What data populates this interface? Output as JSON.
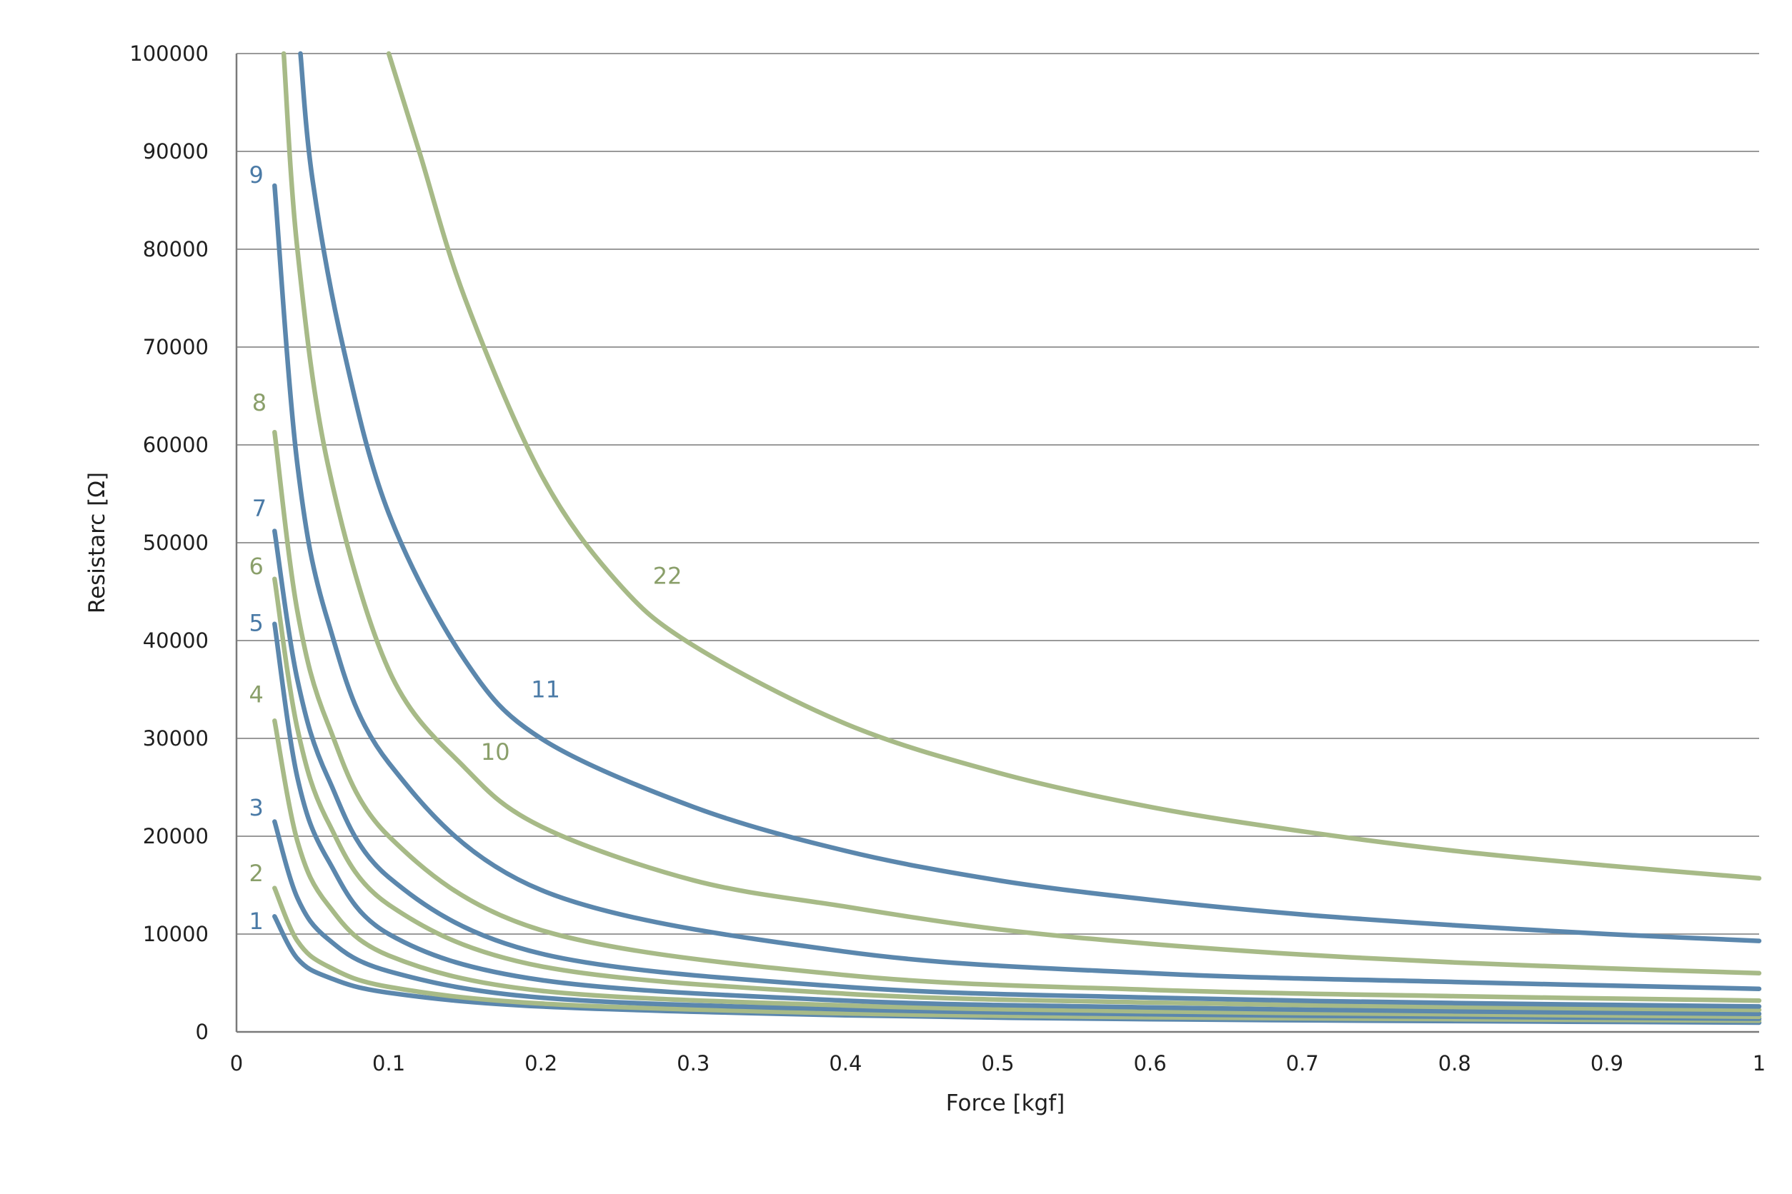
{
  "chart_data": {
    "type": "line",
    "title": "",
    "xlabel": "Force [kgf]",
    "ylabel": "Resistarc [Ω]",
    "xlim": [
      0,
      1
    ],
    "ylim": [
      0,
      100000
    ],
    "x_ticks": [
      "0",
      "0.1",
      "0.2",
      "0.3",
      "0.4",
      "0.5",
      "0.6",
      "0.7",
      "0.8",
      "0.9",
      "1"
    ],
    "y_ticks": [
      "0",
      "10000",
      "20000",
      "30000",
      "40000",
      "50000",
      "60000",
      "70000",
      "80000",
      "90000",
      "100000"
    ],
    "grid": "horizontal",
    "legend": "none",
    "colors": {
      "blue": "#5b87ad",
      "green": "#a7ba87",
      "label_blue": "#4a7aa6",
      "label_green": "#8a9f6a"
    },
    "series": [
      {
        "label": "1",
        "color": "blue",
        "points": [
          [
            0.025,
            11800
          ],
          [
            0.04,
            7500
          ],
          [
            0.06,
            5600
          ],
          [
            0.1,
            4000
          ],
          [
            0.2,
            2600
          ],
          [
            0.4,
            1700
          ],
          [
            0.6,
            1300
          ],
          [
            0.8,
            1100
          ],
          [
            1.0,
            950
          ]
        ]
      },
      {
        "label": "2",
        "color": "green",
        "points": [
          [
            0.025,
            14700
          ],
          [
            0.04,
            9300
          ],
          [
            0.06,
            6700
          ],
          [
            0.1,
            4600
          ],
          [
            0.2,
            2900
          ],
          [
            0.4,
            1900
          ],
          [
            0.6,
            1500
          ],
          [
            0.8,
            1300
          ],
          [
            1.0,
            1150
          ]
        ]
      },
      {
        "label": "3",
        "color": "blue",
        "points": [
          [
            0.025,
            21500
          ],
          [
            0.04,
            13700
          ],
          [
            0.06,
            9500
          ],
          [
            0.1,
            6200
          ],
          [
            0.2,
            3500
          ],
          [
            0.4,
            2300
          ],
          [
            0.6,
            1800
          ],
          [
            0.8,
            1550
          ],
          [
            1.0,
            1350
          ]
        ]
      },
      {
        "label": "4",
        "color": "green",
        "points": [
          [
            0.025,
            31800
          ],
          [
            0.04,
            19500
          ],
          [
            0.06,
            13000
          ],
          [
            0.1,
            7800
          ],
          [
            0.2,
            4200
          ],
          [
            0.4,
            2700
          ],
          [
            0.6,
            2100
          ],
          [
            0.8,
            1800
          ],
          [
            1.0,
            1550
          ]
        ]
      },
      {
        "label": "5",
        "color": "blue",
        "points": [
          [
            0.025,
            41700
          ],
          [
            0.04,
            26000
          ],
          [
            0.06,
            17600
          ],
          [
            0.1,
            10000
          ],
          [
            0.2,
            5300
          ],
          [
            0.4,
            3200
          ],
          [
            0.6,
            2500
          ],
          [
            0.8,
            2100
          ],
          [
            1.0,
            1850
          ]
        ]
      },
      {
        "label": "6",
        "color": "green",
        "points": [
          [
            0.025,
            46300
          ],
          [
            0.04,
            31000
          ],
          [
            0.06,
            21500
          ],
          [
            0.1,
            13000
          ],
          [
            0.2,
            6700
          ],
          [
            0.4,
            3900
          ],
          [
            0.6,
            3000
          ],
          [
            0.8,
            2550
          ],
          [
            1.0,
            2250
          ]
        ]
      },
      {
        "label": "7",
        "color": "blue",
        "points": [
          [
            0.025,
            51200
          ],
          [
            0.04,
            36000
          ],
          [
            0.06,
            26000
          ],
          [
            0.1,
            15800
          ],
          [
            0.2,
            8000
          ],
          [
            0.4,
            4600
          ],
          [
            0.6,
            3500
          ],
          [
            0.8,
            2950
          ],
          [
            1.0,
            2600
          ]
        ]
      },
      {
        "label": "8",
        "color": "green",
        "points": [
          [
            0.025,
            61300
          ],
          [
            0.04,
            43000
          ],
          [
            0.06,
            31500
          ],
          [
            0.1,
            20000
          ],
          [
            0.2,
            10400
          ],
          [
            0.4,
            5800
          ],
          [
            0.6,
            4300
          ],
          [
            0.8,
            3650
          ],
          [
            1.0,
            3200
          ]
        ]
      },
      {
        "label": "9",
        "color": "blue",
        "points": [
          [
            0.025,
            86500
          ],
          [
            0.04,
            58000
          ],
          [
            0.06,
            42000
          ],
          [
            0.1,
            27500
          ],
          [
            0.2,
            14500
          ],
          [
            0.4,
            8200
          ],
          [
            0.6,
            6000
          ],
          [
            0.8,
            5100
          ],
          [
            1.0,
            4400
          ]
        ]
      },
      {
        "label": "10",
        "color": "green",
        "points": [
          [
            0.031,
            100000
          ],
          [
            0.04,
            80000
          ],
          [
            0.06,
            58000
          ],
          [
            0.1,
            37000
          ],
          [
            0.15,
            27000
          ],
          [
            0.2,
            21000
          ],
          [
            0.3,
            15500
          ],
          [
            0.4,
            12800
          ],
          [
            0.5,
            10500
          ],
          [
            0.6,
            9000
          ],
          [
            0.7,
            7900
          ],
          [
            0.8,
            7100
          ],
          [
            0.9,
            6500
          ],
          [
            1.0,
            6000
          ]
        ]
      },
      {
        "label": "11",
        "color": "blue",
        "points": [
          [
            0.042,
            100000
          ],
          [
            0.05,
            87000
          ],
          [
            0.07,
            70000
          ],
          [
            0.1,
            53000
          ],
          [
            0.15,
            38000
          ],
          [
            0.2,
            30000
          ],
          [
            0.3,
            23000
          ],
          [
            0.4,
            18500
          ],
          [
            0.5,
            15500
          ],
          [
            0.6,
            13500
          ],
          [
            0.7,
            12000
          ],
          [
            0.8,
            10900
          ],
          [
            0.9,
            10000
          ],
          [
            1.0,
            9300
          ]
        ]
      },
      {
        "label": "22",
        "color": "green",
        "points": [
          [
            0.1,
            100000
          ],
          [
            0.12,
            90000
          ],
          [
            0.15,
            75000
          ],
          [
            0.2,
            57000
          ],
          [
            0.25,
            46000
          ],
          [
            0.3,
            39500
          ],
          [
            0.4,
            31500
          ],
          [
            0.5,
            26500
          ],
          [
            0.6,
            23000
          ],
          [
            0.7,
            20500
          ],
          [
            0.8,
            18500
          ],
          [
            0.9,
            17000
          ],
          [
            1.0,
            15700
          ]
        ]
      }
    ],
    "labels": [
      {
        "text": "1",
        "x": 0.013,
        "y": 10500,
        "color": "label_blue"
      },
      {
        "text": "2",
        "x": 0.013,
        "y": 15400,
        "color": "label_green"
      },
      {
        "text": "3",
        "x": 0.013,
        "y": 22100,
        "color": "label_blue"
      },
      {
        "text": "4",
        "x": 0.013,
        "y": 33700,
        "color": "label_green"
      },
      {
        "text": "5",
        "x": 0.013,
        "y": 41000,
        "color": "label_blue"
      },
      {
        "text": "6",
        "x": 0.013,
        "y": 46800,
        "color": "label_green"
      },
      {
        "text": "7",
        "x": 0.015,
        "y": 52700,
        "color": "label_blue"
      },
      {
        "text": "8",
        "x": 0.015,
        "y": 63500,
        "color": "label_green"
      },
      {
        "text": "9",
        "x": 0.013,
        "y": 86800,
        "color": "label_blue"
      },
      {
        "text": "10",
        "x": 0.17,
        "y": 27800,
        "color": "label_green"
      },
      {
        "text": "11",
        "x": 0.203,
        "y": 34200,
        "color": "label_blue"
      },
      {
        "text": "22",
        "x": 0.283,
        "y": 45800,
        "color": "label_green"
      }
    ]
  }
}
